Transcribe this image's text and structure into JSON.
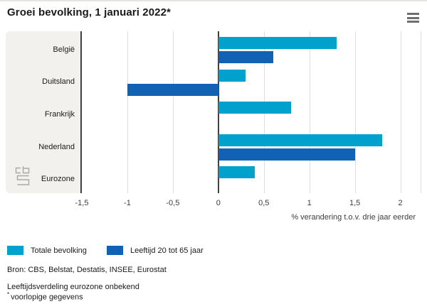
{
  "header": {
    "title": "Groei bevolking, 1 januari 2022*",
    "menu_icon": "hamburger-icon"
  },
  "chart_data": {
    "type": "bar",
    "orientation": "horizontal",
    "title": "Groei bevolking, 1 januari 2022*",
    "categories": [
      "België",
      "Duitsland",
      "Frankrijk",
      "Nederland",
      "Eurozone"
    ],
    "series": [
      {
        "name": "Totale bevolking",
        "color": "#00a1cd",
        "values": [
          1.3,
          0.3,
          0.8,
          1.8,
          0.4
        ]
      },
      {
        "name": "Leeftijd 20 tot 65 jaar",
        "color": "#1161b4",
        "values": [
          0.6,
          -1.0,
          null,
          1.5,
          null
        ]
      }
    ],
    "xlabel": "% verandering t.o.v. drie jaar eerder",
    "ylabel": "",
    "xlim": [
      -1.5,
      2.23
    ],
    "xticks": {
      "values": [
        -1.5,
        -1,
        -0.5,
        0,
        0.5,
        1,
        1.5,
        2
      ],
      "labels": [
        "-1,5",
        "-1",
        "-0,5",
        "0",
        "0,5",
        "1",
        "1,5",
        "2"
      ]
    },
    "grid": true,
    "legend_position": "bottom"
  },
  "footer": {
    "source": "Bron: CBS, Belstat, Destatis, INSEE, Eurostat",
    "note1": "Leeftijdsverdeling eurozone onbekend",
    "note2_marker": "*",
    "note2_text": "voorlopige gegevens"
  },
  "icons": {
    "menu": "hamburger-icon",
    "logo": "cbs-logo"
  }
}
